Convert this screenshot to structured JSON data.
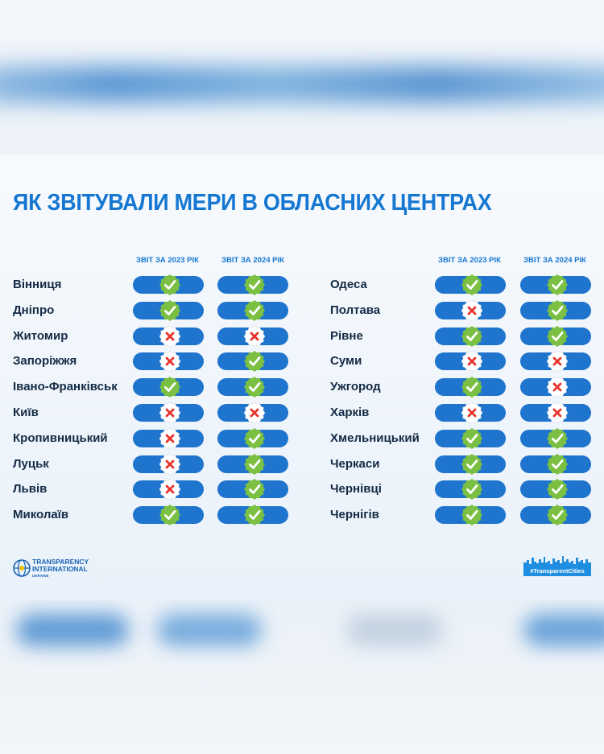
{
  "title": "ЯК ЗВІТУВАЛИ МЕРИ В ОБЛАСНИХ ЦЕНТРАХ",
  "column_headers": [
    "ЗВІТ ЗА 2023 РІК",
    "ЗВІТ ЗА 2024 РІК"
  ],
  "left_rows": [
    {
      "city": "Вінниця",
      "y2023": true,
      "y2024": true
    },
    {
      "city": "Дніпро",
      "y2023": true,
      "y2024": true
    },
    {
      "city": "Житомир",
      "y2023": false,
      "y2024": false
    },
    {
      "city": "Запоріжжя",
      "y2023": false,
      "y2024": true
    },
    {
      "city": "Івано-Франківськ",
      "y2023": true,
      "y2024": true
    },
    {
      "city": "Київ",
      "y2023": false,
      "y2024": false
    },
    {
      "city": "Кропивницький",
      "y2023": false,
      "y2024": true
    },
    {
      "city": "Луцьк",
      "y2023": false,
      "y2024": true
    },
    {
      "city": "Львів",
      "y2023": false,
      "y2024": true
    },
    {
      "city": "Миколаїв",
      "y2023": true,
      "y2024": true
    }
  ],
  "right_rows": [
    {
      "city": "Одеса",
      "y2023": true,
      "y2024": true
    },
    {
      "city": "Полтава",
      "y2023": false,
      "y2024": true
    },
    {
      "city": "Рівне",
      "y2023": true,
      "y2024": true
    },
    {
      "city": "Суми",
      "y2023": false,
      "y2024": false
    },
    {
      "city": "Ужгород",
      "y2023": true,
      "y2024": false
    },
    {
      "city": "Харків",
      "y2023": false,
      "y2024": false
    },
    {
      "city": "Хмельницький",
      "y2023": true,
      "y2024": true
    },
    {
      "city": "Черкаси",
      "y2023": true,
      "y2024": true
    },
    {
      "city": "Чернівці",
      "y2023": true,
      "y2024": true
    },
    {
      "city": "Чернігів",
      "y2023": true,
      "y2024": true
    }
  ],
  "logos": {
    "ti_line1": "TRANSPARENCY",
    "ti_line2": "INTERNATIONAL",
    "ti_sub": "UKRAINE",
    "tc_hashtag": "#TransparentCities"
  },
  "colors": {
    "title": "#1677d2",
    "pill": "#1f74cd",
    "check_badge": "#7bc043",
    "cross_badge": "#ffffff",
    "cross_mark": "#e8342b"
  }
}
